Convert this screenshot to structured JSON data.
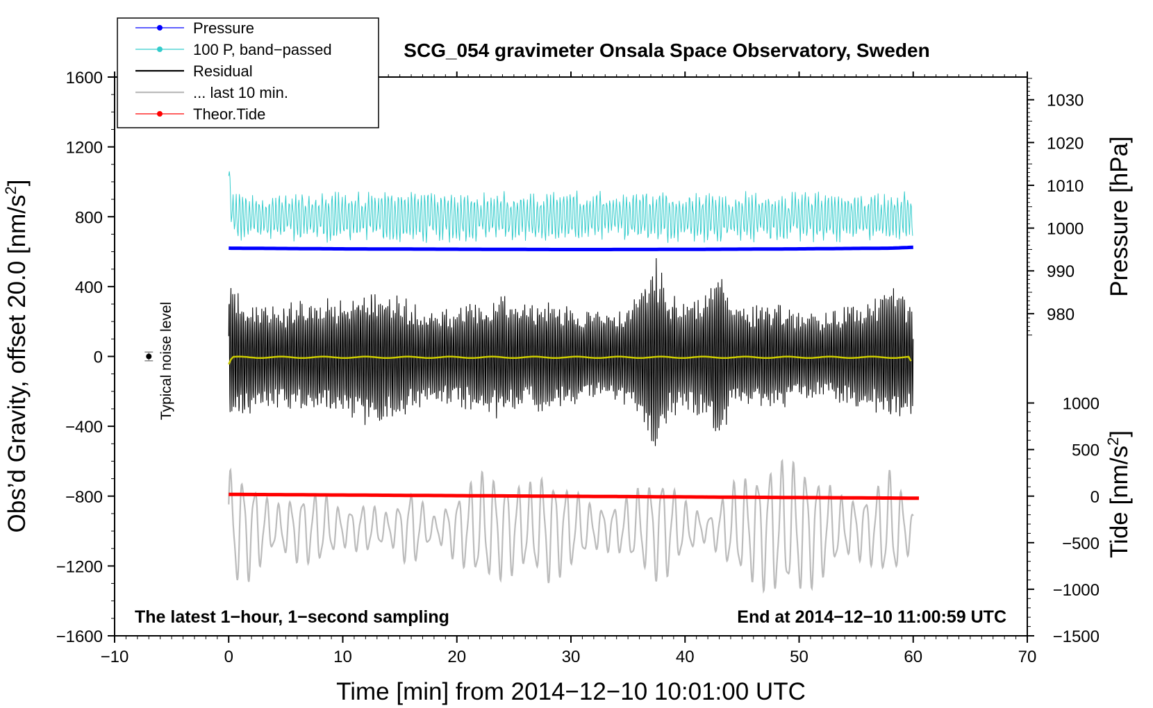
{
  "chart_data": {
    "type": "line",
    "title": "SCG_054 gravimeter Onsala Space Observatory, Sweden",
    "xlabel": "Time [min] from 2014−12−10 10:01:00 UTC",
    "ylabel_prefix": "Obs’d Gravity, offset 20.0 [nm/s",
    "ylabel_suffix": "]",
    "y2label": "Pressure [hPa]",
    "y3label_prefix": "Tide [nm/s",
    "y3label_suffix": "]",
    "superscript": "2",
    "xlim": [
      -10,
      70
    ],
    "ylim": [
      -1600,
      1600
    ],
    "x_ticks": [
      -10,
      0,
      10,
      20,
      30,
      40,
      50,
      60,
      70
    ],
    "x_tick_labels": [
      "−10",
      "0",
      "10",
      "20",
      "30",
      "40",
      "50",
      "60",
      "70"
    ],
    "y_ticks": [
      1600,
      1200,
      800,
      400,
      0,
      -400,
      -800,
      -1200,
      -1600
    ],
    "y_tick_labels": [
      "1600",
      "1200",
      "800",
      "400",
      "0",
      "−400",
      "−800",
      "−1200",
      "−1600"
    ],
    "pressure_axis": {
      "ticks": [
        1030,
        1020,
        1010,
        1000,
        990,
        980
      ],
      "tick_labels": [
        "1030",
        "1020",
        "1010",
        "1000",
        "990",
        "980"
      ],
      "gravity_at_1000": 735,
      "gravity_per_hPa": 24.5
    },
    "tide_axis": {
      "ticks": [
        1000,
        500,
        0,
        -500,
        -1000,
        -1500
      ],
      "tick_labels": [
        "1000",
        "500",
        "0",
        "−500",
        "−1000",
        "−1500"
      ],
      "gravity_at_0": -800,
      "gravity_per_nms2": 0.5333
    },
    "legend": {
      "position": "top-left",
      "entries": [
        {
          "label": "Pressure",
          "color": "#0000ff",
          "marker": true
        },
        {
          "label": "100 P, band−passed",
          "color": "#33cccc",
          "marker": true
        },
        {
          "label": "Residual",
          "color": "#000000",
          "marker": false
        },
        {
          "label": "... last 10 min.",
          "color": "#bbbbbb",
          "marker": false
        },
        {
          "label": "Theor.Tide",
          "color": "#ff0000",
          "marker": true
        }
      ]
    },
    "annotations": {
      "bottom_left": "The latest 1−hour, 1−second sampling",
      "bottom_right": "End at 2014−12−10 11:00:59 UTC",
      "noise_label": "Typical noise level",
      "noise_marker": {
        "x": -7,
        "y": 0,
        "error": 25
      }
    },
    "series": [
      {
        "name": "Pressure",
        "color": "#0000ff",
        "x_range": [
          0,
          60
        ],
        "keypoints": [
          [
            0,
            620
          ],
          [
            10,
            616
          ],
          [
            20,
            614
          ],
          [
            30,
            612
          ],
          [
            40,
            613
          ],
          [
            50,
            616
          ],
          [
            58,
            620
          ],
          [
            60,
            625
          ]
        ]
      },
      {
        "name": "100 P, band-passed",
        "color": "#33cccc",
        "x_range": [
          0,
          60
        ],
        "center": 800,
        "amplitude": 150
      },
      {
        "name": "Residual",
        "color": "#000000",
        "x_range": [
          0,
          60
        ],
        "envelope": [
          [
            0,
            450
          ],
          [
            1,
            380
          ],
          [
            2,
            330
          ],
          [
            4,
            300
          ],
          [
            6,
            320
          ],
          [
            8,
            330
          ],
          [
            10,
            350
          ],
          [
            12,
            420
          ],
          [
            14,
            380
          ],
          [
            16,
            330
          ],
          [
            18,
            270
          ],
          [
            20,
            300
          ],
          [
            22,
            330
          ],
          [
            24,
            370
          ],
          [
            26,
            300
          ],
          [
            28,
            330
          ],
          [
            30,
            300
          ],
          [
            32,
            260
          ],
          [
            34,
            250
          ],
          [
            36,
            370
          ],
          [
            37.5,
            580
          ],
          [
            38.5,
            380
          ],
          [
            40,
            300
          ],
          [
            42,
            380
          ],
          [
            43,
            560
          ],
          [
            44,
            330
          ],
          [
            46,
            300
          ],
          [
            48,
            330
          ],
          [
            50,
            250
          ],
          [
            52,
            250
          ],
          [
            54,
            300
          ],
          [
            56,
            320
          ],
          [
            58,
            400
          ],
          [
            60,
            350
          ]
        ]
      },
      {
        "name": "Residual (smoothed)",
        "color": "#cccc00",
        "x_range": [
          0,
          60
        ],
        "level": -5
      },
      {
        "name": "... last 10 min.",
        "color": "#bbbbbb",
        "x_range": [
          0,
          60
        ],
        "center": -985,
        "envelope": [
          [
            0,
            350
          ],
          [
            2,
            300
          ],
          [
            4,
            130
          ],
          [
            6,
            200
          ],
          [
            8,
            220
          ],
          [
            10,
            110
          ],
          [
            12,
            150
          ],
          [
            14,
            90
          ],
          [
            16,
            240
          ],
          [
            18,
            70
          ],
          [
            20,
            200
          ],
          [
            22,
            330
          ],
          [
            24,
            300
          ],
          [
            26,
            250
          ],
          [
            28,
            330
          ],
          [
            30,
            240
          ],
          [
            32,
            130
          ],
          [
            34,
            140
          ],
          [
            36,
            240
          ],
          [
            38,
            330
          ],
          [
            40,
            160
          ],
          [
            42,
            70
          ],
          [
            44,
            260
          ],
          [
            46,
            330
          ],
          [
            48,
            400
          ],
          [
            50,
            390
          ],
          [
            52,
            310
          ],
          [
            54,
            170
          ],
          [
            56,
            200
          ],
          [
            58,
            340
          ],
          [
            60,
            110
          ]
        ]
      },
      {
        "name": "Theor.Tide",
        "color": "#ff0000",
        "x_range": [
          0,
          60.5
        ],
        "start": -790,
        "end": -812
      }
    ]
  }
}
